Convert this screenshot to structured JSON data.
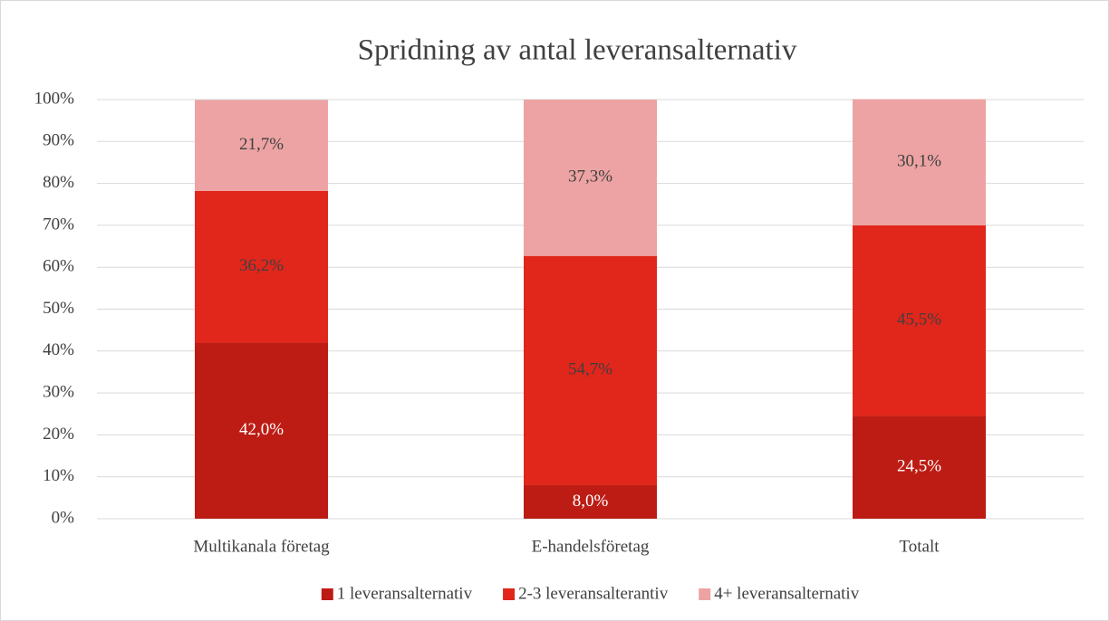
{
  "chart_data": {
    "type": "stacked_bar",
    "title": "Spridning av antal leveransalternativ",
    "categories": [
      "Multikanala företag",
      "E-handelsföretag",
      "Totalt"
    ],
    "series": [
      {
        "name": "1 leveransalternativ",
        "color": "#bd1c14",
        "label_color": "#ffffff",
        "values": [
          42.0,
          8.0,
          24.5
        ],
        "value_labels": [
          "42,0%",
          "8,0%",
          "24,5%"
        ]
      },
      {
        "name": "2-3 leveransalterantiv",
        "color": "#e1261b",
        "label_color": "#404040",
        "values": [
          36.2,
          54.7,
          45.5
        ],
        "value_labels": [
          "36,2%",
          "54,7%",
          "45,5%"
        ]
      },
      {
        "name": "4+ leveransalternativ",
        "color": "#eda3a3",
        "label_color": "#404040",
        "values": [
          21.7,
          37.3,
          30.1
        ],
        "value_labels": [
          "21,7%",
          "37,3%",
          "30,1%"
        ]
      }
    ],
    "ylim": [
      0,
      100
    ],
    "yticks": [
      {
        "value": 0,
        "label": "0%"
      },
      {
        "value": 10,
        "label": "10%"
      },
      {
        "value": 20,
        "label": "20%"
      },
      {
        "value": 30,
        "label": "30%"
      },
      {
        "value": 40,
        "label": "40%"
      },
      {
        "value": 50,
        "label": "50%"
      },
      {
        "value": 60,
        "label": "60%"
      },
      {
        "value": 70,
        "label": "70%"
      },
      {
        "value": 80,
        "label": "80%"
      },
      {
        "value": 90,
        "label": "90%"
      },
      {
        "value": 100,
        "label": "100%"
      }
    ],
    "grid": true,
    "legend": "bottom"
  }
}
